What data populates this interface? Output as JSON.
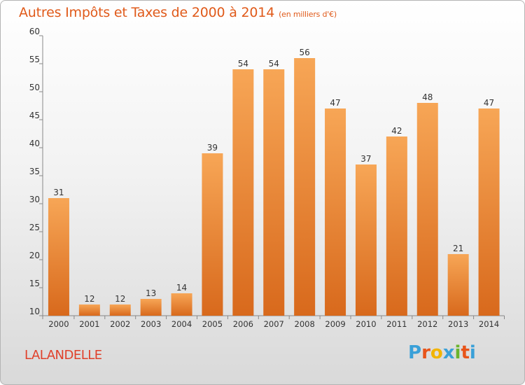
{
  "chart_data": {
    "type": "bar",
    "title": "Autres Impôts et Taxes de 2000 à 2014",
    "subtitle": "(en milliers d'€)",
    "categories": [
      "2000",
      "2001",
      "2002",
      "2003",
      "2004",
      "2005",
      "2006",
      "2007",
      "2008",
      "2009",
      "2010",
      "2011",
      "2012",
      "2013",
      "2014"
    ],
    "values": [
      31,
      12,
      12,
      13,
      14,
      39,
      54,
      54,
      56,
      47,
      37,
      42,
      48,
      21,
      47
    ],
    "ylim": [
      10,
      60
    ],
    "yticks": [
      10,
      15,
      20,
      25,
      30,
      35,
      40,
      45,
      50,
      55,
      60
    ],
    "grid": false,
    "bar_color": "#f08a2e"
  },
  "location_label": "LALANDELLE",
  "logo": {
    "text": "Proxiti",
    "colors": [
      "#3aa0d8",
      "#e8541a",
      "#f2b400",
      "#3aa0d8",
      "#6ab42d",
      "#e8541a",
      "#3aa0d8"
    ]
  }
}
